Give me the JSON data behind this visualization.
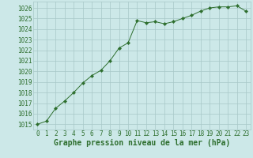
{
  "x": [
    0,
    1,
    2,
    3,
    4,
    5,
    6,
    7,
    8,
    9,
    10,
    11,
    12,
    13,
    14,
    15,
    16,
    17,
    18,
    19,
    20,
    21,
    22,
    23
  ],
  "y": [
    1015.0,
    1015.3,
    1016.5,
    1017.2,
    1018.0,
    1018.9,
    1019.6,
    1020.1,
    1021.0,
    1022.2,
    1022.7,
    1024.8,
    1024.6,
    1024.7,
    1024.5,
    1024.7,
    1025.0,
    1025.3,
    1025.7,
    1026.0,
    1026.1,
    1026.1,
    1026.2,
    1025.7
  ],
  "xlim": [
    -0.5,
    23.5
  ],
  "ylim": [
    1014.5,
    1026.6
  ],
  "yticks": [
    1015,
    1016,
    1017,
    1018,
    1019,
    1020,
    1021,
    1022,
    1023,
    1024,
    1025,
    1026
  ],
  "xticks": [
    0,
    1,
    2,
    3,
    4,
    5,
    6,
    7,
    8,
    9,
    10,
    11,
    12,
    13,
    14,
    15,
    16,
    17,
    18,
    19,
    20,
    21,
    22,
    23
  ],
  "xlabel": "Graphe pression niveau de la mer (hPa)",
  "line_color": "#2d6e2d",
  "marker": "D",
  "marker_size": 2.2,
  "bg_color": "#cce8e8",
  "grid_color": "#a8c8c8",
  "tick_label_color": "#2d6e2d",
  "xlabel_color": "#2d6e2d",
  "xlabel_fontsize": 7.0,
  "tick_fontsize": 5.5
}
